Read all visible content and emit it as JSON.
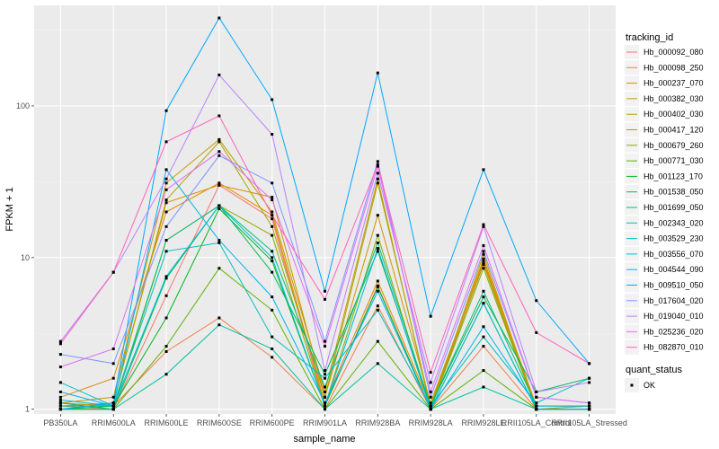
{
  "chart_data": {
    "type": "line",
    "title": "",
    "xlabel": "sample_name",
    "ylabel": "FPKM + 1",
    "y_scale": "log10",
    "ylim": [
      0.93,
      460
    ],
    "y_ticks": [
      1,
      10,
      100
    ],
    "y_tick_labels": [
      "1",
      "10",
      "100"
    ],
    "grid": true,
    "legend_position": "right",
    "background": "#ebebeb",
    "categories": [
      "PB350LA",
      "RRIM600LA",
      "RRIM600LE",
      "RRIM600SE",
      "RRIM600PE",
      "RRIM901LA",
      "RRIM928BA",
      "RRIM928LA",
      "RRIM928LE",
      "RRII105LA_Control",
      "RRII105LA_Stressed"
    ],
    "series": [
      {
        "name": "Hb_000092_080",
        "color": "#F8766D",
        "values": [
          1.05,
          1.0,
          5.6,
          30,
          18,
          1.05,
          6.5,
          1.0,
          9.2,
          1.0,
          1.0
        ]
      },
      {
        "name": "Hb_000098_250",
        "color": "#EF7F49",
        "values": [
          1.1,
          1.05,
          2.4,
          4.0,
          2.2,
          1.0,
          4.8,
          1.0,
          2.6,
          1.0,
          1.05
        ]
      },
      {
        "name": "Hb_000237_070",
        "color": "#E38900",
        "values": [
          1.2,
          1.6,
          20,
          31,
          19,
          1.1,
          7.0,
          1.05,
          9.8,
          1.05,
          1.05
        ]
      },
      {
        "name": "Hb_000382_030",
        "color": "#D39200",
        "values": [
          1.0,
          1.1,
          23,
          30,
          25,
          1.2,
          19,
          1.1,
          9.5,
          1.0,
          1.0
        ]
      },
      {
        "name": "Hb_000402_030",
        "color": "#C09B00",
        "values": [
          1.1,
          1.2,
          31,
          60,
          20,
          1.3,
          33,
          1.0,
          10.5,
          1.0,
          1.05
        ]
      },
      {
        "name": "Hb_000417_120",
        "color": "#A9A400",
        "values": [
          1.05,
          1.1,
          24,
          58,
          16,
          1.2,
          31,
          1.05,
          9.0,
          1.0,
          1.0
        ]
      },
      {
        "name": "Hb_000679_260",
        "color": "#8AAB00",
        "values": [
          1.0,
          1.0,
          13,
          22,
          14,
          1.05,
          14,
          1.0,
          8.5,
          1.0,
          1.0
        ]
      },
      {
        "name": "Hb_000771_030",
        "color": "#5BB300",
        "values": [
          1.0,
          1.0,
          2.6,
          8.5,
          4.5,
          1.0,
          2.8,
          1.0,
          1.8,
          1.0,
          1.0
        ]
      },
      {
        "name": "Hb_001123_170",
        "color": "#00B81F",
        "values": [
          1.0,
          1.05,
          4.0,
          21,
          9.5,
          1.05,
          6.4,
          1.0,
          5.0,
          1.0,
          1.0
        ]
      },
      {
        "name": "Hb_001538_050",
        "color": "#00BC59",
        "values": [
          1.1,
          1.0,
          7.3,
          22,
          8.0,
          1.7,
          11,
          1.05,
          5.5,
          1.3,
          1.6
        ]
      },
      {
        "name": "Hb_001699_050",
        "color": "#00BF7D",
        "values": [
          1.05,
          1.05,
          13,
          22,
          11,
          1.4,
          12.5,
          1.05,
          6.0,
          1.05,
          1.05
        ]
      },
      {
        "name": "Hb_002343_020",
        "color": "#00C19D",
        "values": [
          1.0,
          1.0,
          1.7,
          3.6,
          2.5,
          1.0,
          2.0,
          1.0,
          1.4,
          1.0,
          1.0
        ]
      },
      {
        "name": "Hb_003529_230",
        "color": "#00C0BA",
        "values": [
          1.5,
          1.05,
          11,
          12.5,
          3.0,
          1.6,
          4.5,
          1.05,
          3.0,
          1.1,
          1.6
        ]
      },
      {
        "name": "Hb_003556_070",
        "color": "#00BCD5",
        "values": [
          1.15,
          1.05,
          7.5,
          22,
          10,
          1.05,
          11.5,
          1.0,
          5.0,
          1.0,
          1.0
        ]
      },
      {
        "name": "Hb_004544_090",
        "color": "#00B5EE",
        "values": [
          1.3,
          1.05,
          38,
          13,
          5.5,
          1.1,
          6.0,
          1.0,
          3.5,
          1.05,
          1.05
        ]
      },
      {
        "name": "Hb_009510_050",
        "color": "#00A8FF",
        "values": [
          1.0,
          1.1,
          93,
          380,
          110,
          6.0,
          165,
          4.1,
          38,
          5.2,
          2.0
        ]
      },
      {
        "name": "Hb_017604_020",
        "color": "#7F96FF",
        "values": [
          2.3,
          2.0,
          16,
          47,
          31,
          2.8,
          43,
          1.2,
          11,
          1.2,
          1.1
        ]
      },
      {
        "name": "Hb_019040_010",
        "color": "#BC81FF",
        "values": [
          2.8,
          8.0,
          33,
          160,
          65,
          1.8,
          36,
          1.5,
          16,
          1.3,
          1.5
        ]
      },
      {
        "name": "Hb_025236_020",
        "color": "#E26EF7",
        "values": [
          1.9,
          2.5,
          28,
          50,
          24,
          2.6,
          40,
          1.3,
          12,
          1.2,
          1.1
        ]
      },
      {
        "name": "Hb_082870_010",
        "color": "#FF62BC",
        "values": [
          2.7,
          8.0,
          58,
          86,
          19,
          5.3,
          41,
          1.75,
          16.5,
          3.2,
          2.0
        ]
      }
    ],
    "extra_series_color": "#FF6C91",
    "legend_title": "tracking_id",
    "shape_legend_title": "quant_status",
    "shape_legend_entries": [
      "OK"
    ]
  }
}
